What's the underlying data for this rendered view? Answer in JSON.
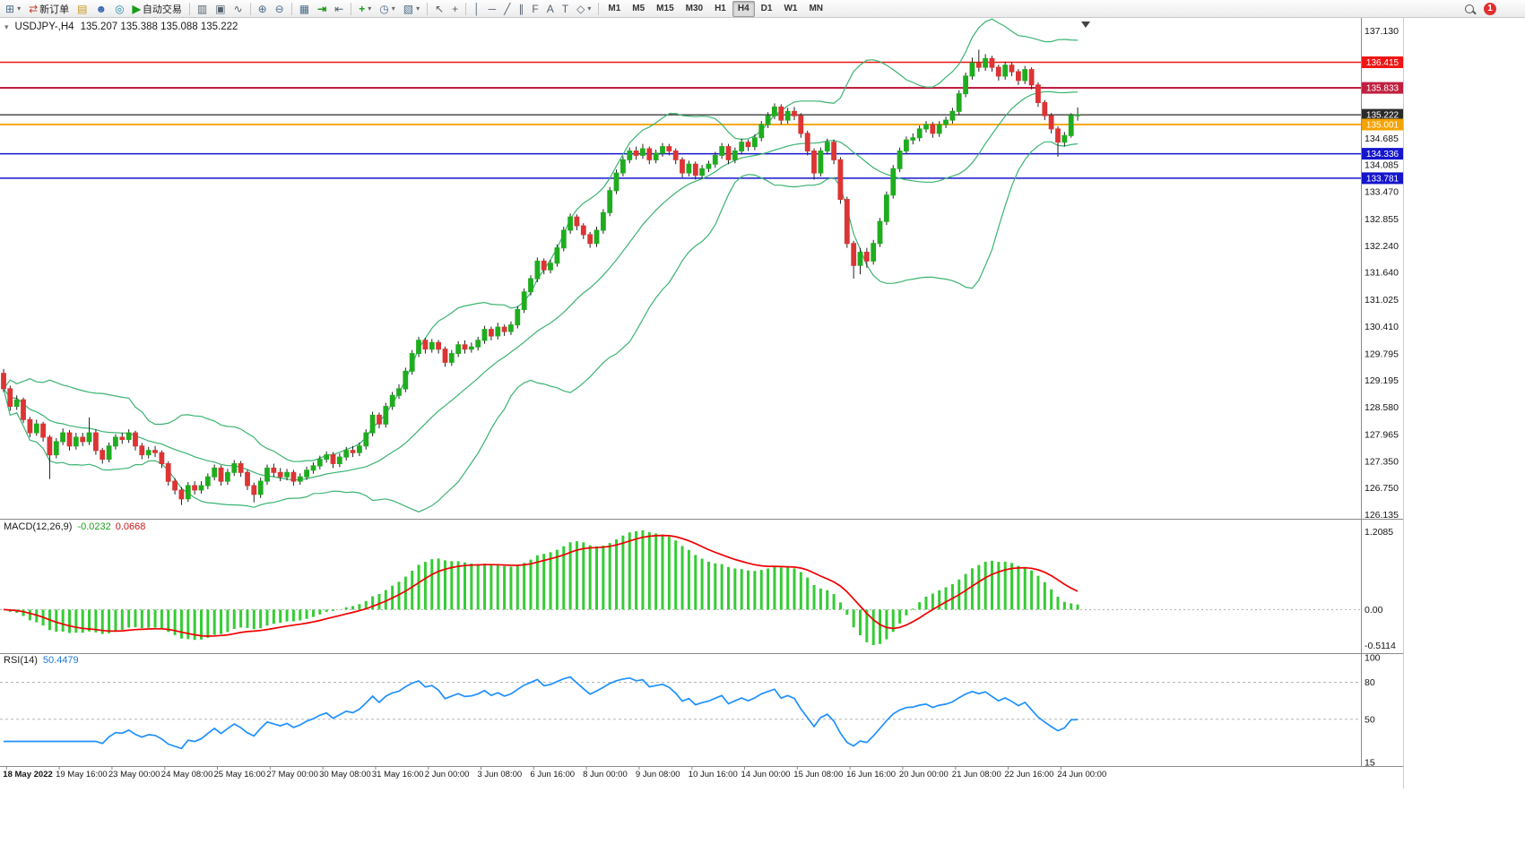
{
  "toolbar": {
    "new_order_label": "新订单",
    "autotrade_label": "自动交易",
    "timeframes": [
      "M1",
      "M5",
      "M15",
      "M30",
      "H1",
      "H4",
      "D1",
      "W1",
      "MN"
    ],
    "active_timeframe": "H4",
    "notification_count": "1"
  },
  "icons": {
    "chart_window": "⊞",
    "dropdown": "▾",
    "new_order": "⇄",
    "history_center": "▤",
    "community": "☻",
    "market": "◎",
    "autotrade_play": "▶",
    "bars": "▥",
    "candles": "▣",
    "line_chart": "∿",
    "zoom_in": "⊕",
    "zoom_out": "⊖",
    "tile_windows": "▦",
    "auto_scroll": "⇥",
    "chart_shift": "⇤",
    "indicators_add": "+",
    "periods": "◷",
    "templates": "▧",
    "cursor": "↖",
    "crosshair": "+",
    "vertical_line": "│",
    "horizontal_line": "─",
    "trendline": "╱",
    "channel": "∥",
    "fibonacci": "F",
    "text_tool": "A",
    "label_tool": "T",
    "shapes": "◇",
    "symbol_marker": "▾"
  },
  "symbol_info": {
    "symbol": "USDJPY-,H4",
    "ohlc": "135.207 135.388 135.088 135.222"
  },
  "chart_data": {
    "type": "candlestick",
    "symbol": "USDJPY",
    "timeframe": "H4",
    "colors": {
      "up": "#1fad1f",
      "down": "#dd3434",
      "wick": "#222222",
      "bollinger": "#3cb371",
      "macd_hist": "#35cc35",
      "macd_signal": "#f00000",
      "rsi": "#1e90ff"
    },
    "price_axis": {
      "labels": [
        "137.130",
        "134.685",
        "134.085",
        "133.470",
        "132.855",
        "132.240",
        "131.640",
        "131.025",
        "130.410",
        "129.795",
        "129.195",
        "128.580",
        "127.965",
        "127.350",
        "126.750",
        "126.135"
      ]
    },
    "hlines": [
      {
        "price": 136.415,
        "label": "136.415",
        "color": "#f01515",
        "width": 1.5
      },
      {
        "price": 135.833,
        "label": "135.833",
        "color": "#c02040",
        "width": 2.2
      },
      {
        "price": 135.222,
        "label": "135.222",
        "color": "#2b2b2b",
        "width": 1.3
      },
      {
        "price": 135.001,
        "label": "135.001",
        "color": "#f5a300",
        "width": 1.8
      },
      {
        "price": 134.336,
        "label": "134.336",
        "color": "#1515cc",
        "width": 1.5
      },
      {
        "price": 133.781,
        "label": "133.781",
        "color": "#1515cc",
        "width": 1.5
      }
    ],
    "candles": [
      [
        129.35,
        129.45,
        128.93,
        129.0
      ],
      [
        129.0,
        129.07,
        128.5,
        128.6
      ],
      [
        128.6,
        128.85,
        128.52,
        128.75
      ],
      [
        128.75,
        128.8,
        128.22,
        128.3
      ],
      [
        128.3,
        128.36,
        127.9,
        128.0
      ],
      [
        128.0,
        128.3,
        127.93,
        128.2
      ],
      [
        128.2,
        128.25,
        127.8,
        127.9
      ],
      [
        127.9,
        127.95,
        126.95,
        127.5
      ],
      [
        127.5,
        127.88,
        127.42,
        127.8
      ],
      [
        127.8,
        128.1,
        127.72,
        128.0
      ],
      [
        128.0,
        128.06,
        127.6,
        127.7
      ],
      [
        127.7,
        128.0,
        127.62,
        127.9
      ],
      [
        127.9,
        128.0,
        127.7,
        127.8
      ],
      [
        127.8,
        128.35,
        127.72,
        128.0
      ],
      [
        128.0,
        128.08,
        127.5,
        127.6
      ],
      [
        127.6,
        127.66,
        127.3,
        127.4
      ],
      [
        127.4,
        127.78,
        127.33,
        127.7
      ],
      [
        127.7,
        127.97,
        127.62,
        127.9
      ],
      [
        127.9,
        128.0,
        127.75,
        127.85
      ],
      [
        127.85,
        128.08,
        127.77,
        128.0
      ],
      [
        128.0,
        128.05,
        127.6,
        127.7
      ],
      [
        127.7,
        127.77,
        127.4,
        127.5
      ],
      [
        127.5,
        127.68,
        127.42,
        127.6
      ],
      [
        127.6,
        127.7,
        127.45,
        127.55
      ],
      [
        127.55,
        127.6,
        127.2,
        127.3
      ],
      [
        127.3,
        127.35,
        126.8,
        126.9
      ],
      [
        126.9,
        126.97,
        126.6,
        126.7
      ],
      [
        126.7,
        126.77,
        126.36,
        126.5
      ],
      [
        126.5,
        126.88,
        126.43,
        126.8
      ],
      [
        126.8,
        126.9,
        126.6,
        126.7
      ],
      [
        126.7,
        126.9,
        126.62,
        126.8
      ],
      [
        126.8,
        127.08,
        126.72,
        127.0
      ],
      [
        127.0,
        127.28,
        126.92,
        127.2
      ],
      [
        127.2,
        127.26,
        126.8,
        126.9
      ],
      [
        126.9,
        127.18,
        126.82,
        127.1
      ],
      [
        127.1,
        127.38,
        127.02,
        127.3
      ],
      [
        127.3,
        127.36,
        127.0,
        127.1
      ],
      [
        127.1,
        127.16,
        126.7,
        126.8
      ],
      [
        126.8,
        126.87,
        126.42,
        126.6
      ],
      [
        126.6,
        126.98,
        126.52,
        126.9
      ],
      [
        126.9,
        127.28,
        126.82,
        127.2
      ],
      [
        127.2,
        127.3,
        127.0,
        127.1
      ],
      [
        127.1,
        127.2,
        126.9,
        127.0
      ],
      [
        127.0,
        127.18,
        126.92,
        127.1
      ],
      [
        127.1,
        127.16,
        126.8,
        126.9
      ],
      [
        126.9,
        127.08,
        126.82,
        127.0
      ],
      [
        127.0,
        127.23,
        126.93,
        127.15
      ],
      [
        127.15,
        127.33,
        127.07,
        127.25
      ],
      [
        127.25,
        127.48,
        127.17,
        127.4
      ],
      [
        127.4,
        127.58,
        127.32,
        127.5
      ],
      [
        127.5,
        127.56,
        127.2,
        127.3
      ],
      [
        127.3,
        127.53,
        127.22,
        127.45
      ],
      [
        127.45,
        127.68,
        127.37,
        127.6
      ],
      [
        127.6,
        127.7,
        127.45,
        127.55
      ],
      [
        127.55,
        127.78,
        127.47,
        127.7
      ],
      [
        127.7,
        128.08,
        127.62,
        128.0
      ],
      [
        128.0,
        128.48,
        127.92,
        128.4
      ],
      [
        128.4,
        128.46,
        128.1,
        128.2
      ],
      [
        128.2,
        128.68,
        128.12,
        128.6
      ],
      [
        128.6,
        128.93,
        128.52,
        128.85
      ],
      [
        128.85,
        129.1,
        128.77,
        129.0
      ],
      [
        129.0,
        129.48,
        128.92,
        129.4
      ],
      [
        129.4,
        129.88,
        129.32,
        129.8
      ],
      [
        129.8,
        130.18,
        129.72,
        130.1
      ],
      [
        130.1,
        130.16,
        129.8,
        129.9
      ],
      [
        129.9,
        130.13,
        129.82,
        130.05
      ],
      [
        130.05,
        130.11,
        129.8,
        129.9
      ],
      [
        129.9,
        129.96,
        129.5,
        129.6
      ],
      [
        129.6,
        129.88,
        129.52,
        129.8
      ],
      [
        129.8,
        130.08,
        129.72,
        130.0
      ],
      [
        130.0,
        130.1,
        129.8,
        129.9
      ],
      [
        129.9,
        130.05,
        129.82,
        129.95
      ],
      [
        129.95,
        130.18,
        129.87,
        130.1
      ],
      [
        130.1,
        130.43,
        130.02,
        130.35
      ],
      [
        130.35,
        130.41,
        130.1,
        130.2
      ],
      [
        130.2,
        130.5,
        130.12,
        130.4
      ],
      [
        130.4,
        130.46,
        130.2,
        130.3
      ],
      [
        130.3,
        130.53,
        130.22,
        130.45
      ],
      [
        130.45,
        130.88,
        130.37,
        130.8
      ],
      [
        130.8,
        131.28,
        130.72,
        131.2
      ],
      [
        131.2,
        131.58,
        131.12,
        131.5
      ],
      [
        131.5,
        131.98,
        131.42,
        131.9
      ],
      [
        131.9,
        131.96,
        131.6,
        131.7
      ],
      [
        131.7,
        131.93,
        131.62,
        131.85
      ],
      [
        131.85,
        132.28,
        131.77,
        132.2
      ],
      [
        132.2,
        132.68,
        132.12,
        132.6
      ],
      [
        132.6,
        132.98,
        132.52,
        132.9
      ],
      [
        132.9,
        132.96,
        132.6,
        132.7
      ],
      [
        132.7,
        132.76,
        132.4,
        132.5
      ],
      [
        132.5,
        132.56,
        132.2,
        132.3
      ],
      [
        132.3,
        132.68,
        132.22,
        132.6
      ],
      [
        132.6,
        133.08,
        132.52,
        133.0
      ],
      [
        133.0,
        133.58,
        132.92,
        133.5
      ],
      [
        133.5,
        133.98,
        133.42,
        133.9
      ],
      [
        133.9,
        134.28,
        133.82,
        134.2
      ],
      [
        134.2,
        134.48,
        134.12,
        134.4
      ],
      [
        134.4,
        134.5,
        134.2,
        134.3
      ],
      [
        134.3,
        134.56,
        134.22,
        134.45
      ],
      [
        134.45,
        134.5,
        134.1,
        134.2
      ],
      [
        134.2,
        134.43,
        134.12,
        134.35
      ],
      [
        134.35,
        134.58,
        134.27,
        134.5
      ],
      [
        134.5,
        134.56,
        134.3,
        134.4
      ],
      [
        134.4,
        134.46,
        134.1,
        134.2
      ],
      [
        134.2,
        134.26,
        133.8,
        133.9
      ],
      [
        133.9,
        134.18,
        133.82,
        134.1
      ],
      [
        134.1,
        134.16,
        133.75,
        133.85
      ],
      [
        133.85,
        134.08,
        133.77,
        134.0
      ],
      [
        134.0,
        134.18,
        133.92,
        134.1
      ],
      [
        134.1,
        134.38,
        134.02,
        134.3
      ],
      [
        134.3,
        134.58,
        134.22,
        134.5
      ],
      [
        134.5,
        134.56,
        134.1,
        134.2
      ],
      [
        134.2,
        134.48,
        134.12,
        134.4
      ],
      [
        134.4,
        134.68,
        134.32,
        134.6
      ],
      [
        134.6,
        134.66,
        134.4,
        134.5
      ],
      [
        134.5,
        134.78,
        134.42,
        134.7
      ],
      [
        134.7,
        135.08,
        134.62,
        135.0
      ],
      [
        135.0,
        135.28,
        134.92,
        135.2
      ],
      [
        135.2,
        135.48,
        135.12,
        135.4
      ],
      [
        135.4,
        135.46,
        135.0,
        135.1
      ],
      [
        135.1,
        135.38,
        135.02,
        135.3
      ],
      [
        135.3,
        135.4,
        135.1,
        135.2
      ],
      [
        135.2,
        135.26,
        134.7,
        134.8
      ],
      [
        134.8,
        134.86,
        134.3,
        134.4
      ],
      [
        134.4,
        134.46,
        133.75,
        133.9
      ],
      [
        133.9,
        134.48,
        133.82,
        134.4
      ],
      [
        134.4,
        134.68,
        134.32,
        134.6
      ],
      [
        134.6,
        134.66,
        134.1,
        134.2
      ],
      [
        134.2,
        134.26,
        133.2,
        133.3
      ],
      [
        133.3,
        133.36,
        132.2,
        132.3
      ],
      [
        132.3,
        132.36,
        131.5,
        131.8
      ],
      [
        131.8,
        132.2,
        131.6,
        132.1
      ],
      [
        132.1,
        132.2,
        131.75,
        131.9
      ],
      [
        131.9,
        132.38,
        131.82,
        132.3
      ],
      [
        132.3,
        132.88,
        132.22,
        132.8
      ],
      [
        132.8,
        133.48,
        132.72,
        133.4
      ],
      [
        133.4,
        134.08,
        133.32,
        134.0
      ],
      [
        134.0,
        134.48,
        133.92,
        134.4
      ],
      [
        134.4,
        134.73,
        134.32,
        134.65
      ],
      [
        134.65,
        134.8,
        134.55,
        134.7
      ],
      [
        134.7,
        134.98,
        134.62,
        134.9
      ],
      [
        134.9,
        135.08,
        134.82,
        135.0
      ],
      [
        135.0,
        135.06,
        134.7,
        134.8
      ],
      [
        134.8,
        135.08,
        134.72,
        135.0
      ],
      [
        135.0,
        135.18,
        134.92,
        135.1
      ],
      [
        135.1,
        135.38,
        135.02,
        135.3
      ],
      [
        135.3,
        135.78,
        135.22,
        135.7
      ],
      [
        135.7,
        136.18,
        135.62,
        136.1
      ],
      [
        136.1,
        136.52,
        136.02,
        136.4
      ],
      [
        136.4,
        136.7,
        136.2,
        136.3
      ],
      [
        136.3,
        136.6,
        136.22,
        136.5
      ],
      [
        136.5,
        136.56,
        136.2,
        136.3
      ],
      [
        136.3,
        136.36,
        136.0,
        136.1
      ],
      [
        136.1,
        136.43,
        136.02,
        136.35
      ],
      [
        136.35,
        136.41,
        136.1,
        136.2
      ],
      [
        136.2,
        136.26,
        135.9,
        136.0
      ],
      [
        136.0,
        136.33,
        135.92,
        136.25
      ],
      [
        136.25,
        136.3,
        135.8,
        135.9
      ],
      [
        135.9,
        135.96,
        135.4,
        135.5
      ],
      [
        135.5,
        135.56,
        135.1,
        135.2
      ],
      [
        135.2,
        135.26,
        134.8,
        134.9
      ],
      [
        134.9,
        134.96,
        134.27,
        134.6
      ],
      [
        134.6,
        134.83,
        134.5,
        134.75
      ],
      [
        134.75,
        135.26,
        134.7,
        135.207
      ],
      [
        135.207,
        135.388,
        135.088,
        135.222
      ]
    ],
    "time_axis": [
      "18 May 2022",
      "19 May 16:00",
      "23 May 00:00",
      "24 May 08:00",
      "25 May 16:00",
      "27 May 00:00",
      "30 May 08:00",
      "31 May 16:00",
      "2 Jun 00:00",
      "3 Jun 08:00",
      "6 Jun 16:00",
      "8 Jun 00:00",
      "9 Jun 08:00",
      "10 Jun 16:00",
      "14 Jun 00:00",
      "15 Jun 08:00",
      "16 Jun 16:00",
      "20 Jun 00:00",
      "21 Jun 08:00",
      "22 Jun 16:00",
      "24 Jun 00:00"
    ],
    "macd": {
      "label": "MACD(12,26,9)",
      "value_main": "-0.0232",
      "value_signal": "0.0668",
      "fast": 12,
      "slow": 26,
      "signal": 9,
      "scale": [
        "1.2085",
        "0.00",
        "-0.5114"
      ]
    },
    "rsi": {
      "label": "RSI(14)",
      "value": "50.4479",
      "period": 14,
      "scale": [
        "100",
        "80",
        "50",
        "15"
      ],
      "levels": [
        80,
        50
      ]
    }
  }
}
